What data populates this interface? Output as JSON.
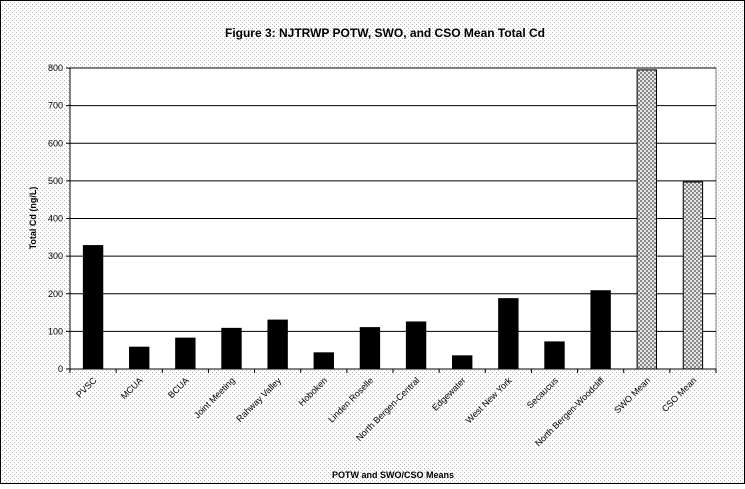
{
  "chart_data": {
    "type": "bar",
    "title": "Figure 3: NJTRWP POTW, SWO, and CSO Mean Total Cd",
    "xlabel": "POTW and SWO/CSO Means",
    "ylabel": "Total Cd (ng/L)",
    "ylim": [
      0,
      800
    ],
    "yticks": [
      0,
      100,
      200,
      300,
      400,
      500,
      600,
      700,
      800
    ],
    "grid": true,
    "legend": "none",
    "categories": [
      "PVSC",
      "MCUA",
      "BCUA",
      "Joint Meeting",
      "Rahway Valley",
      "Hoboken",
      "Linden Roselle",
      "North Bergen-Central",
      "Edgewater",
      "West New York",
      "Secaucus",
      "North Bergen-Woodcliff",
      "SWO Mean",
      "CSO Mean"
    ],
    "values": [
      328,
      58,
      82,
      108,
      130,
      43,
      110,
      125,
      35,
      187,
      72,
      208,
      795,
      497
    ],
    "bar_styles": [
      "solid",
      "solid",
      "solid",
      "solid",
      "solid",
      "solid",
      "solid",
      "solid",
      "solid",
      "solid",
      "solid",
      "solid",
      "hatched",
      "hatched"
    ],
    "colors": {
      "solid_bar": "#000000",
      "hatched_bar": "#c8c8c8",
      "plot_area": "#ffffff",
      "background_dots": "#b8b8b8"
    }
  }
}
